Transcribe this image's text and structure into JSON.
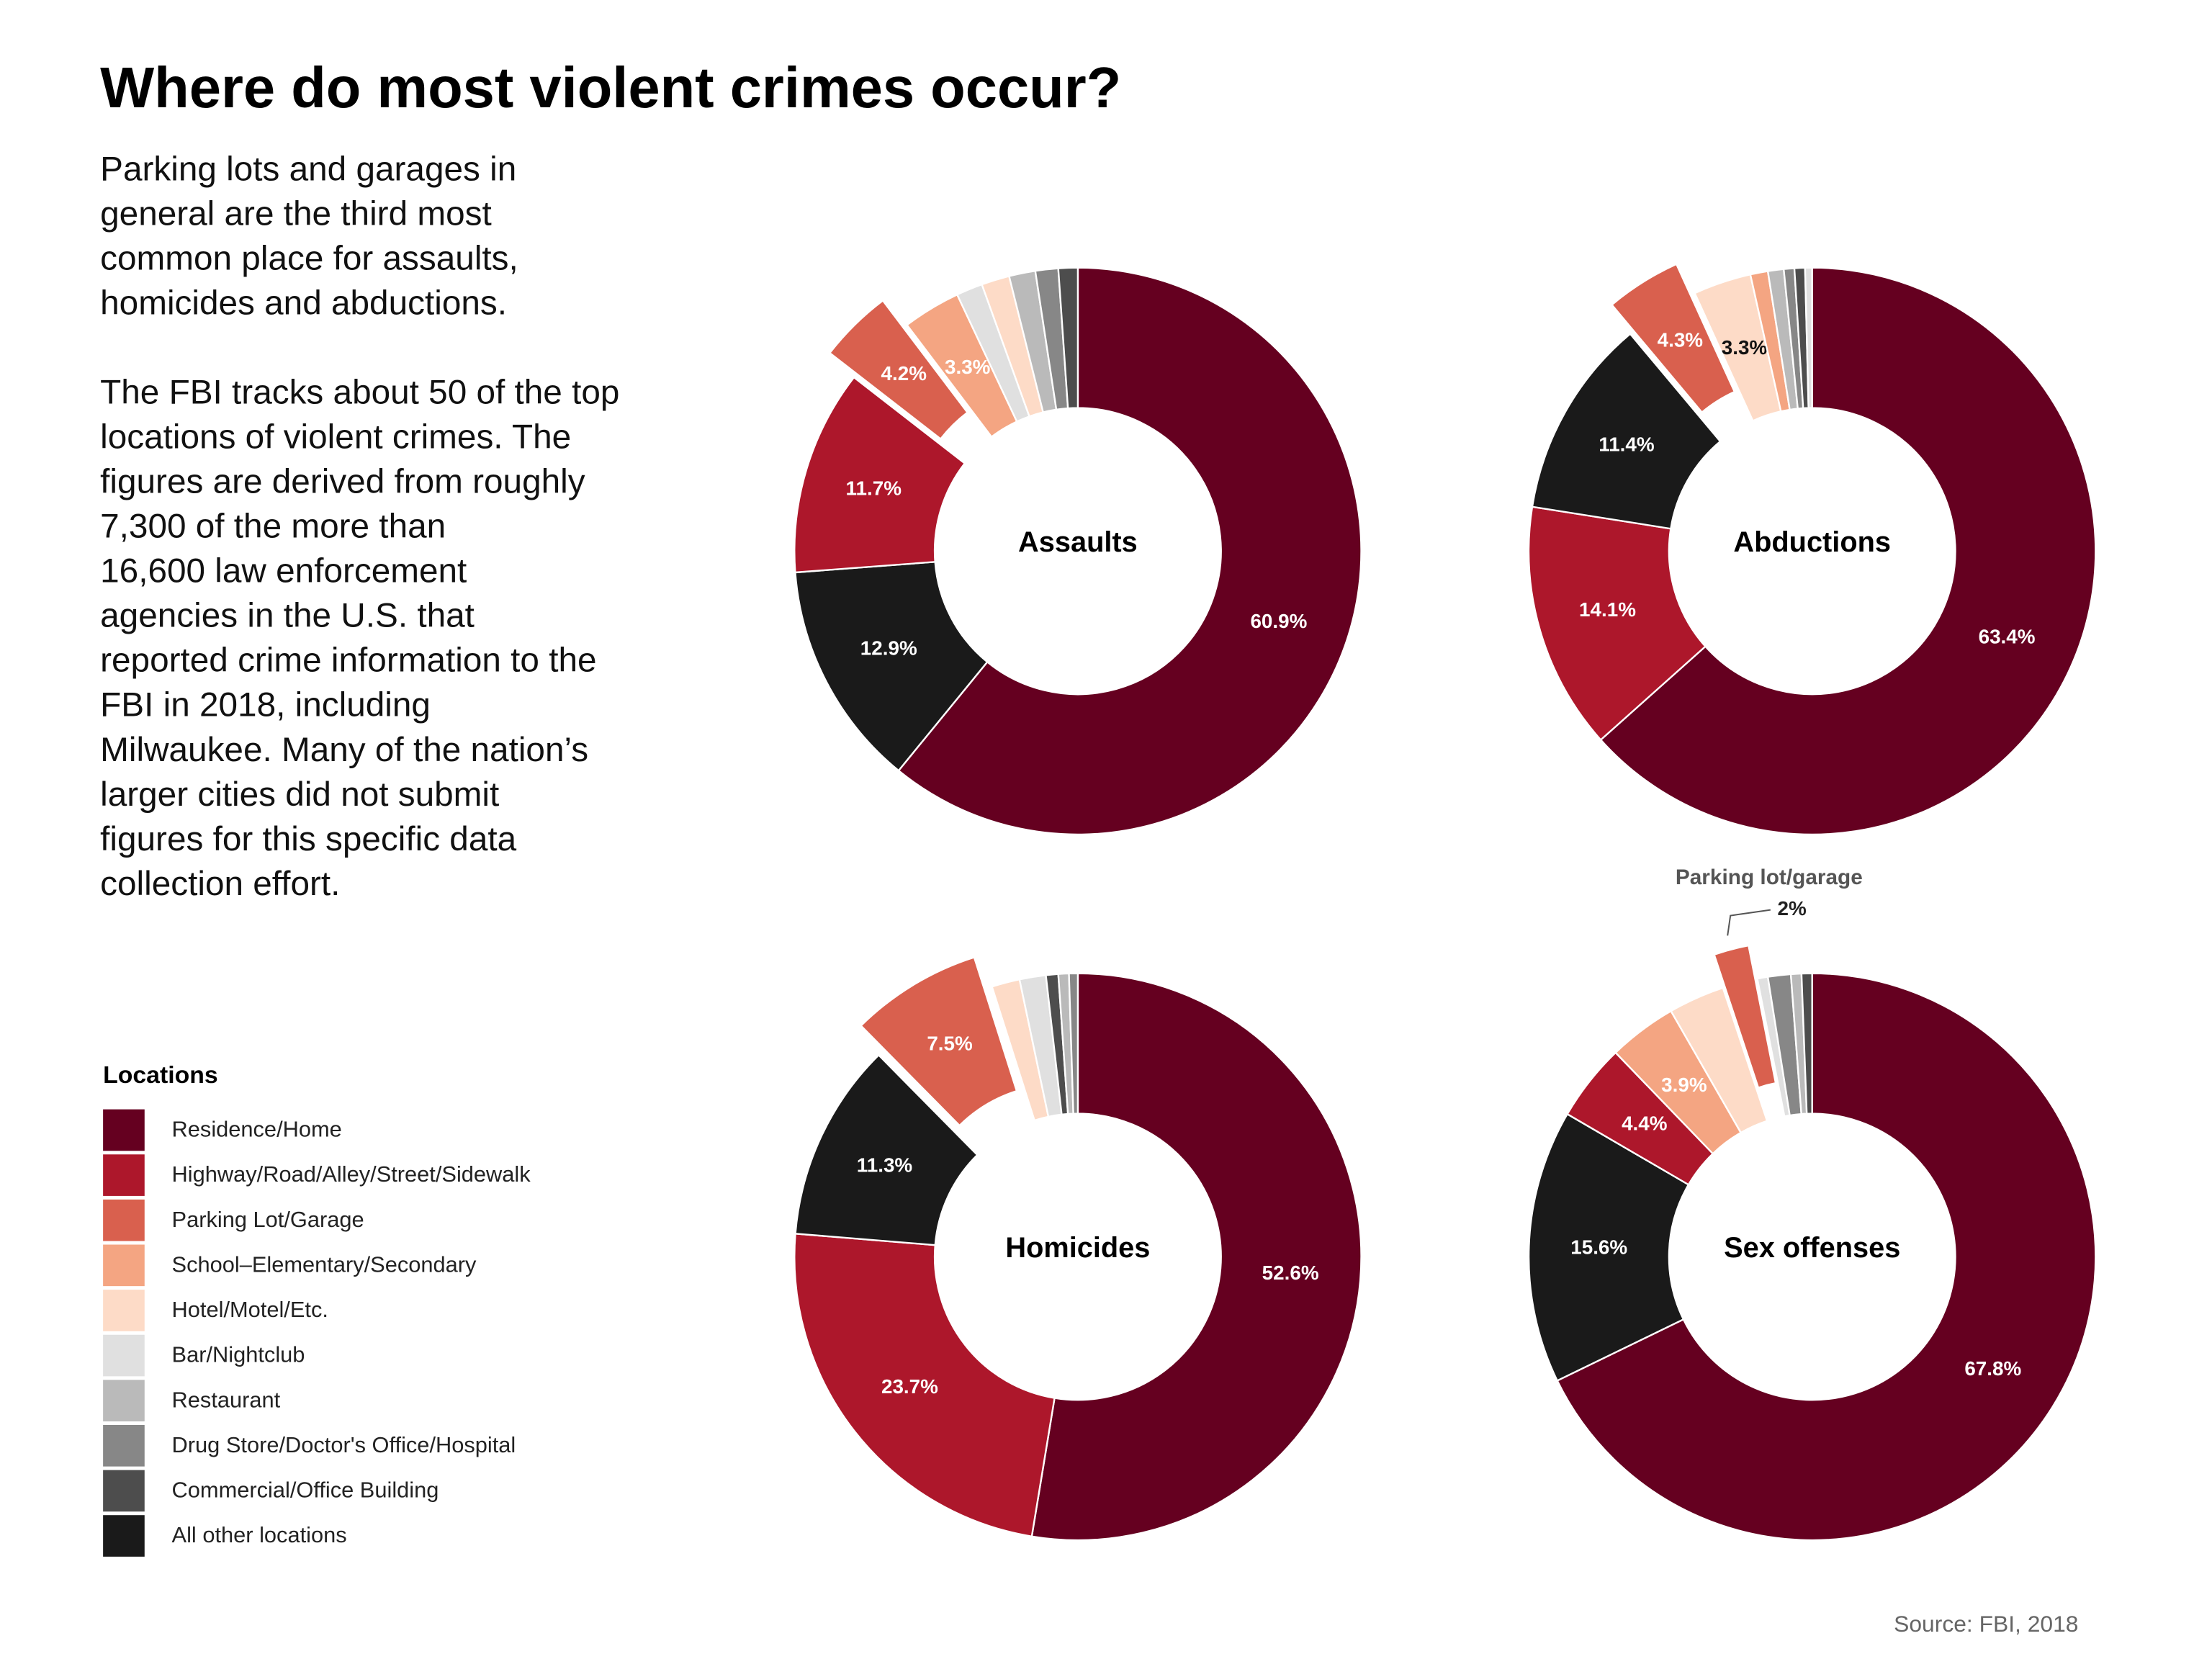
{
  "title": "Where do most violent crimes occur?",
  "description": [
    [
      "Parking lots and garages in",
      "general are the third most",
      "common place for assaults,",
      "homicides and abductions."
    ],
    [
      "The FBI tracks about 50 of the top",
      "locations of violent crimes.  The",
      "figures are derived from roughly",
      "7,300 of the more than",
      "16,600 law enforcement",
      "agencies in the U.S. that",
      "reported crime information to the",
      "FBI in 2018, including",
      "Milwaukee. Many of the nation’s",
      "larger cities did not submit",
      "figures for this specific data",
      "collection effort."
    ]
  ],
  "legend": {
    "title": "Locations",
    "items": [
      {
        "name": "Residence/Home",
        "color": "#650020"
      },
      {
        "name": "Highway/Road/Alley/Street/Sidewalk",
        "color": "#ad172b"
      },
      {
        "name": "Parking Lot/Garage",
        "color": "#d9604e"
      },
      {
        "name": "School–Elementary/Secondary",
        "color": "#f4a582"
      },
      {
        "name": "Hotel/Motel/Etc.",
        "color": "#fddbc7"
      },
      {
        "name": "Bar/Nightclub",
        "color": "#e0e0e0"
      },
      {
        "name": "Restaurant",
        "color": "#bababa"
      },
      {
        "name": "Drug Store/Doctor's Office/Hospital",
        "color": "#878787"
      },
      {
        "name": "Commercial/Office Building",
        "color": "#4d4d4d"
      },
      {
        "name": "All other locations",
        "color": "#1a1a1a"
      }
    ]
  },
  "source": "Source: FBI, 2018",
  "chart_data": [
    {
      "type": "pie",
      "title": "Assaults",
      "donut": true,
      "exploded": "Parking Lot/Garage",
      "categories": [
        "Residence/Home",
        "All other locations",
        "Highway/Road/Alley/Street/Sidewalk",
        "Parking Lot/Garage",
        "School–Elementary/Secondary",
        "Bar/Nightclub",
        "Hotel/Motel/Etc.",
        "Restaurant",
        "Drug Store/Doctor's Office/Hospital",
        "Commercial/Office Building"
      ],
      "values": [
        60.9,
        12.9,
        11.7,
        4.2,
        3.3,
        1.5,
        1.6,
        1.5,
        1.3,
        1.1
      ],
      "value_labels": [
        "60.9%",
        "12.9%",
        "11.7%",
        "4.2%",
        "3.3%",
        null,
        null,
        null,
        null,
        null
      ]
    },
    {
      "type": "pie",
      "title": "Abductions",
      "donut": true,
      "exploded": "Parking Lot/Garage",
      "categories": [
        "Residence/Home",
        "Highway/Road/Alley/Street/Sidewalk",
        "All other locations",
        "Parking Lot/Garage",
        "Hotel/Motel/Etc.",
        "School–Elementary/Secondary",
        "Restaurant",
        "Drug Store/Doctor's Office/Hospital",
        "Commercial/Office Building",
        "Bar/Nightclub"
      ],
      "values": [
        63.4,
        14.1,
        11.4,
        4.3,
        3.3,
        1.0,
        0.9,
        0.6,
        0.6,
        0.4
      ],
      "value_labels": [
        "63.4%",
        "14.1%",
        "11.4%",
        "4.3%",
        "3.3%",
        null,
        null,
        null,
        null,
        null
      ]
    },
    {
      "type": "pie",
      "title": "Homicides",
      "donut": true,
      "exploded": "Parking Lot/Garage",
      "categories": [
        "Residence/Home",
        "Highway/Road/Alley/Street/Sidewalk",
        "All other locations",
        "Parking Lot/Garage",
        "Hotel/Motel/Etc.",
        "Bar/Nightclub",
        "Commercial/Office Building",
        "Restaurant",
        "Drug Store/Doctor's Office/Hospital"
      ],
      "values": [
        52.6,
        23.7,
        11.3,
        7.5,
        1.6,
        1.5,
        0.7,
        0.6,
        0.5
      ],
      "value_labels": [
        "52.6%",
        "23.7%",
        "11.3%",
        "7.5%",
        null,
        null,
        null,
        null,
        null
      ]
    },
    {
      "type": "pie",
      "title": "Sex offenses",
      "donut": true,
      "exploded": "Parking Lot/Garage",
      "annotation": "Parking lot/garage",
      "categories": [
        "Residence/Home",
        "All other locations",
        "Highway/Road/Alley/Street/Sidewalk",
        "School–Elementary/Secondary",
        "Hotel/Motel/Etc.",
        "Parking Lot/Garage",
        "Bar/Nightclub",
        "Drug Store/Doctor's Office/Hospital",
        "Restaurant",
        "Commercial/Office Building"
      ],
      "values": [
        67.8,
        15.6,
        4.4,
        3.9,
        3.2,
        2,
        0.6,
        1.3,
        0.6,
        0.6
      ],
      "value_labels": [
        "67.8%",
        "15.6%",
        "4.4%",
        "3.9%",
        null,
        "2%",
        null,
        null,
        null,
        null
      ]
    }
  ]
}
